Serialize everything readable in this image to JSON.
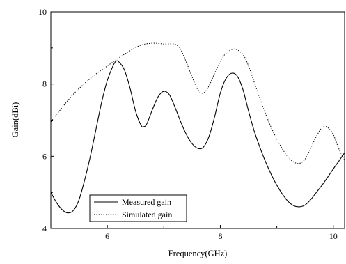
{
  "chart_data": {
    "type": "line",
    "title": "",
    "xlabel": "Frequency(GHz)",
    "ylabel": "Gain(dBi)",
    "xlim": [
      5.0,
      10.2
    ],
    "ylim": [
      4.0,
      10.0
    ],
    "x_ticks": [
      6,
      8,
      10
    ],
    "x_tick_labels": [
      "6",
      "8",
      "10"
    ],
    "x_minor_ticks": [
      5,
      7,
      9
    ],
    "y_ticks": [
      4,
      6,
      8,
      10
    ],
    "y_tick_labels": [
      "4",
      "6",
      "8",
      "10"
    ],
    "y_minor_ticks": [
      5,
      7,
      9
    ],
    "grid": false,
    "legend_position": "bottom-left",
    "series": [
      {
        "name": "Measured gain",
        "line_style": "solid",
        "color": "#000000",
        "points": [
          [
            5.0,
            5.0
          ],
          [
            5.1,
            4.72
          ],
          [
            5.2,
            4.52
          ],
          [
            5.3,
            4.43
          ],
          [
            5.4,
            4.5
          ],
          [
            5.5,
            4.8
          ],
          [
            5.6,
            5.35
          ],
          [
            5.7,
            6.0
          ],
          [
            5.8,
            6.75
          ],
          [
            5.9,
            7.5
          ],
          [
            6.0,
            8.1
          ],
          [
            6.1,
            8.5
          ],
          [
            6.15,
            8.63
          ],
          [
            6.2,
            8.62
          ],
          [
            6.3,
            8.4
          ],
          [
            6.4,
            7.9
          ],
          [
            6.5,
            7.25
          ],
          [
            6.6,
            6.85
          ],
          [
            6.65,
            6.82
          ],
          [
            6.7,
            6.9
          ],
          [
            6.8,
            7.3
          ],
          [
            6.9,
            7.65
          ],
          [
            7.0,
            7.8
          ],
          [
            7.1,
            7.7
          ],
          [
            7.2,
            7.35
          ],
          [
            7.3,
            6.95
          ],
          [
            7.4,
            6.6
          ],
          [
            7.5,
            6.35
          ],
          [
            7.6,
            6.22
          ],
          [
            7.7,
            6.25
          ],
          [
            7.8,
            6.55
          ],
          [
            7.9,
            7.1
          ],
          [
            8.0,
            7.75
          ],
          [
            8.1,
            8.15
          ],
          [
            8.2,
            8.3
          ],
          [
            8.3,
            8.22
          ],
          [
            8.4,
            7.85
          ],
          [
            8.5,
            7.25
          ],
          [
            8.6,
            6.7
          ],
          [
            8.7,
            6.25
          ],
          [
            8.8,
            5.85
          ],
          [
            8.9,
            5.5
          ],
          [
            9.0,
            5.2
          ],
          [
            9.1,
            4.95
          ],
          [
            9.2,
            4.75
          ],
          [
            9.3,
            4.63
          ],
          [
            9.4,
            4.6
          ],
          [
            9.5,
            4.65
          ],
          [
            9.6,
            4.8
          ],
          [
            9.7,
            5.0
          ],
          [
            9.8,
            5.2
          ],
          [
            9.9,
            5.42
          ],
          [
            10.0,
            5.65
          ],
          [
            10.1,
            5.87
          ],
          [
            10.2,
            6.1
          ]
        ]
      },
      {
        "name": "Simulated gain",
        "line_style": "dotted",
        "color": "#000000",
        "points": [
          [
            5.0,
            6.95
          ],
          [
            5.2,
            7.35
          ],
          [
            5.4,
            7.72
          ],
          [
            5.6,
            8.02
          ],
          [
            5.8,
            8.28
          ],
          [
            6.0,
            8.5
          ],
          [
            6.2,
            8.72
          ],
          [
            6.4,
            8.92
          ],
          [
            6.6,
            9.08
          ],
          [
            6.8,
            9.13
          ],
          [
            7.0,
            9.11
          ],
          [
            7.2,
            9.1
          ],
          [
            7.3,
            8.95
          ],
          [
            7.4,
            8.6
          ],
          [
            7.5,
            8.2
          ],
          [
            7.6,
            7.85
          ],
          [
            7.7,
            7.75
          ],
          [
            7.8,
            7.95
          ],
          [
            7.9,
            8.3
          ],
          [
            8.0,
            8.62
          ],
          [
            8.1,
            8.85
          ],
          [
            8.25,
            8.97
          ],
          [
            8.4,
            8.82
          ],
          [
            8.5,
            8.5
          ],
          [
            8.6,
            8.05
          ],
          [
            8.7,
            7.6
          ],
          [
            8.8,
            7.18
          ],
          [
            8.9,
            6.8
          ],
          [
            9.0,
            6.48
          ],
          [
            9.1,
            6.2
          ],
          [
            9.2,
            5.98
          ],
          [
            9.3,
            5.84
          ],
          [
            9.4,
            5.8
          ],
          [
            9.5,
            5.92
          ],
          [
            9.6,
            6.22
          ],
          [
            9.7,
            6.55
          ],
          [
            9.8,
            6.8
          ],
          [
            9.85,
            6.82
          ],
          [
            9.9,
            6.8
          ],
          [
            10.0,
            6.6
          ],
          [
            10.1,
            6.2
          ],
          [
            10.2,
            5.88
          ]
        ]
      }
    ]
  }
}
